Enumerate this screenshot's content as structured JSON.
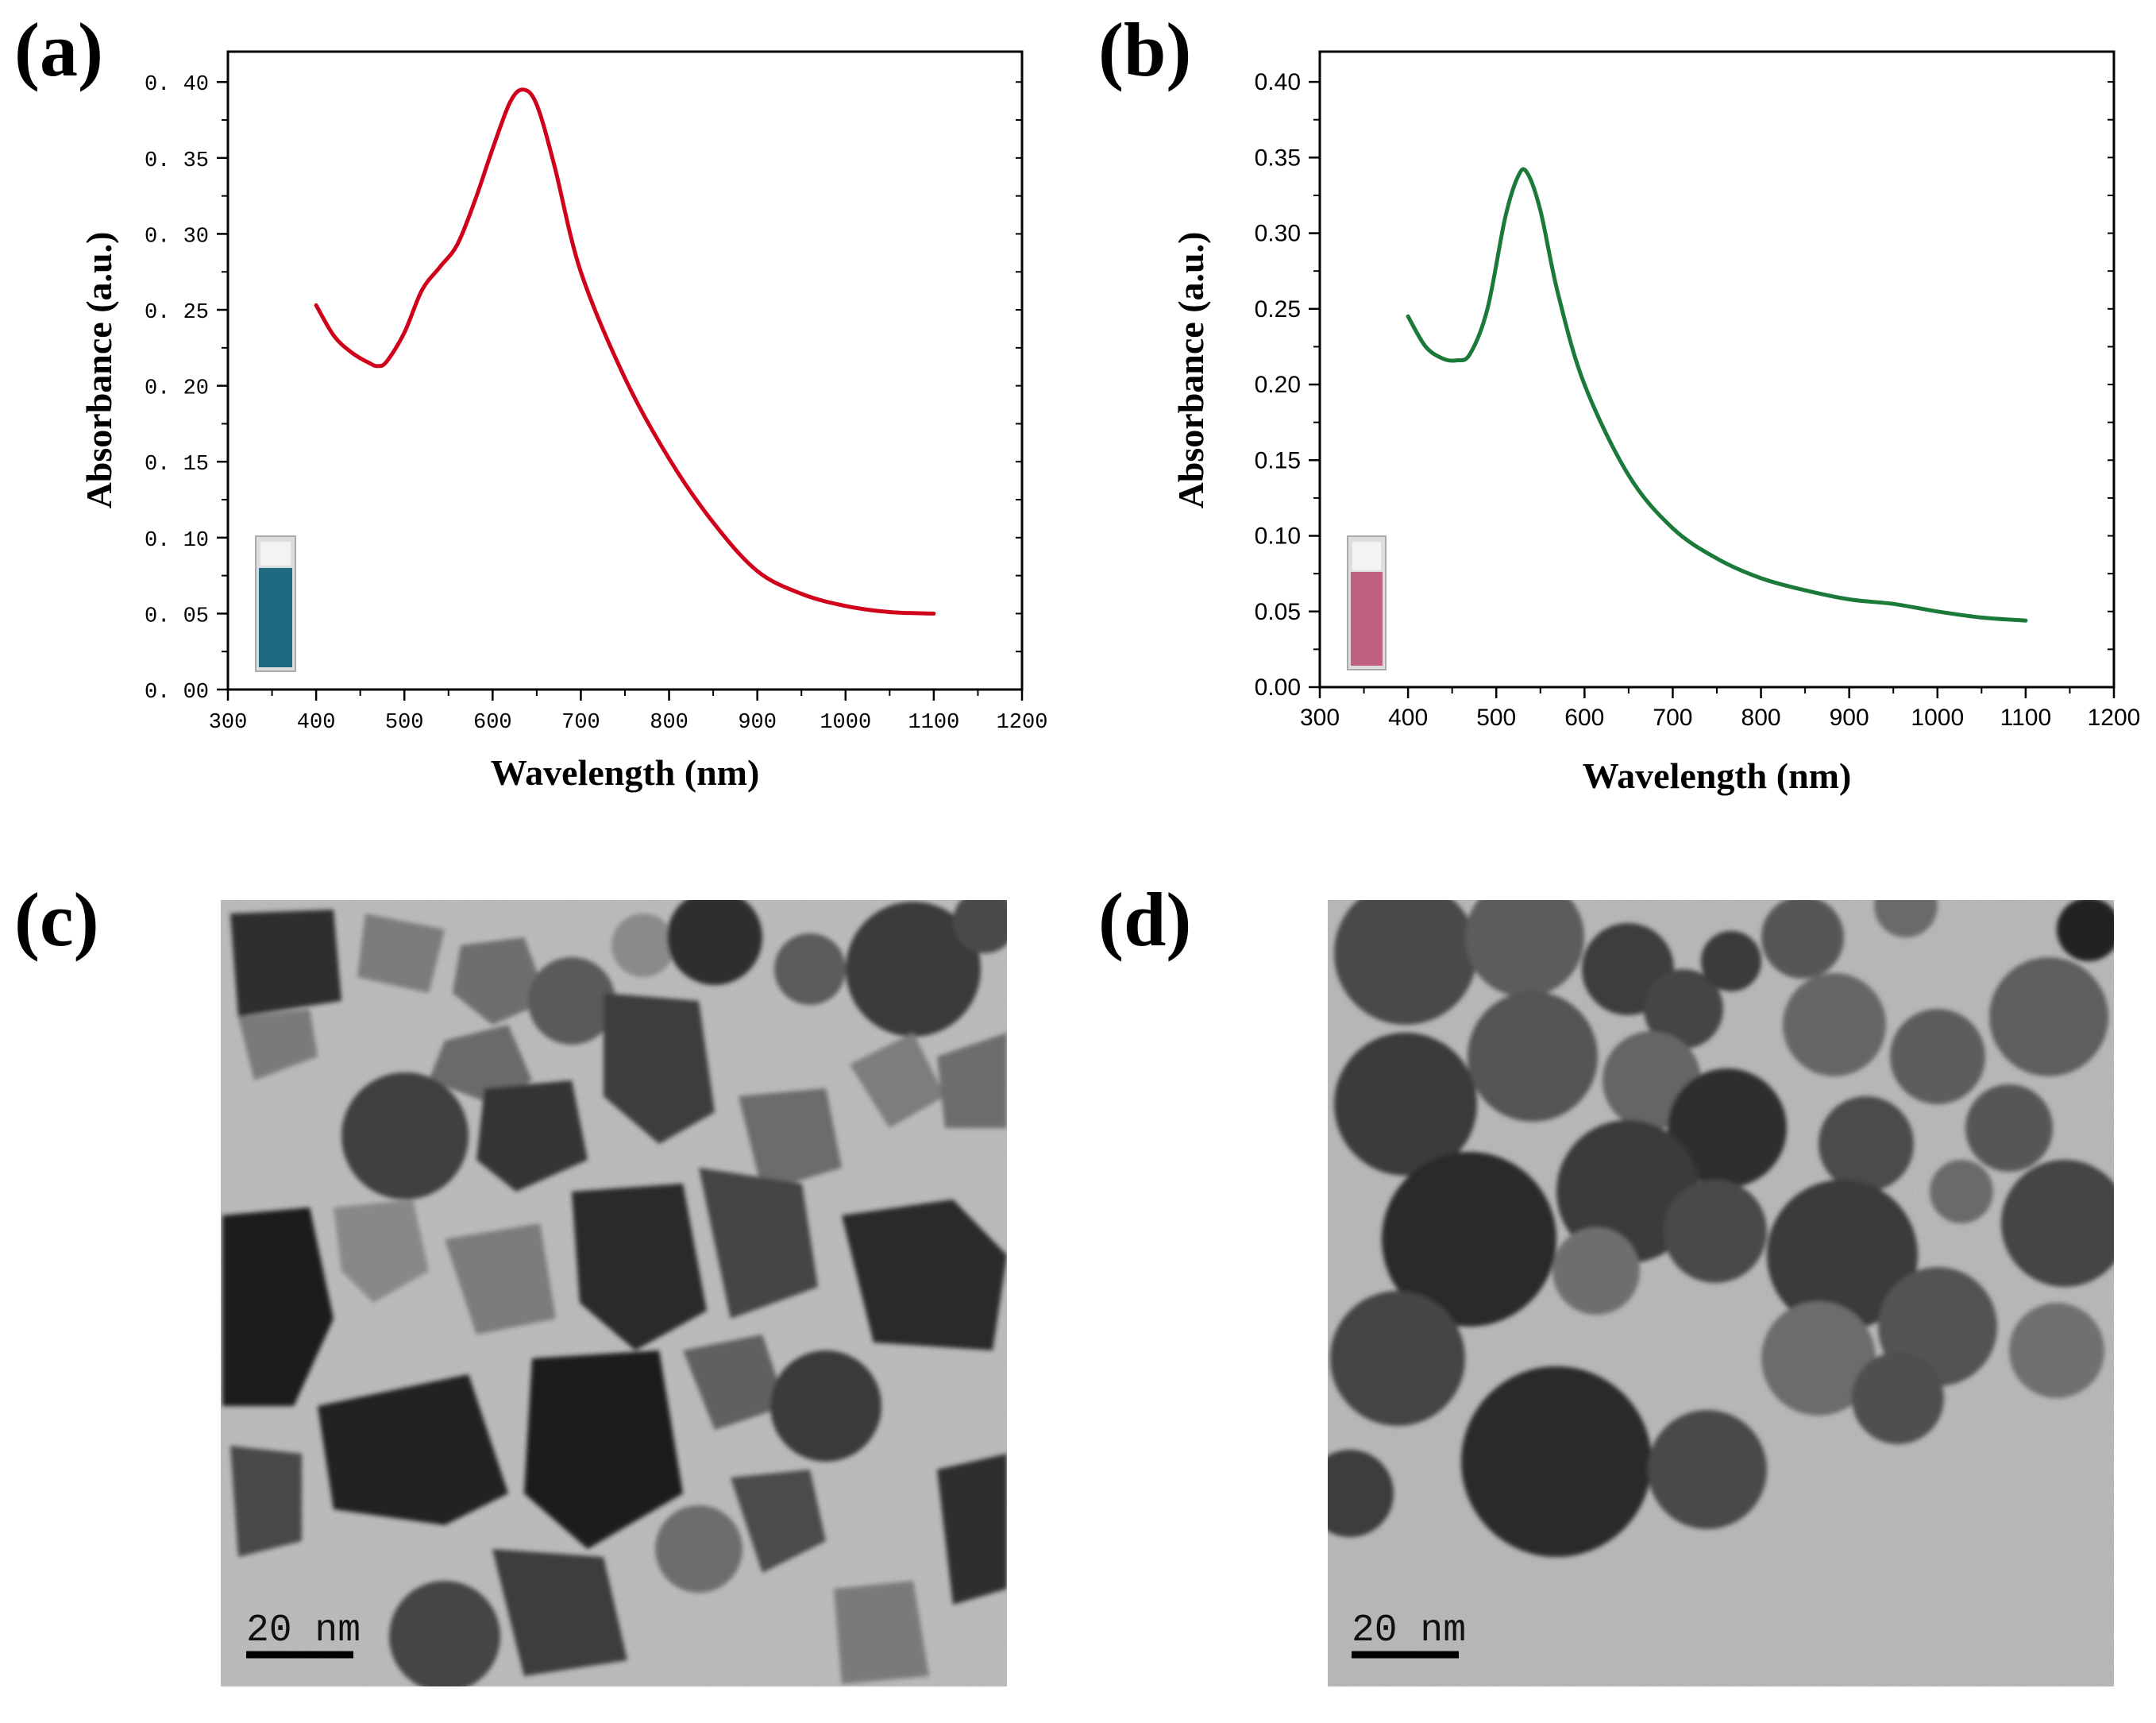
{
  "panels": {
    "a": "(a)",
    "b": "(b)",
    "c": "(c)",
    "d": "(d)"
  },
  "colors": {
    "series_a": "#d0021b",
    "series_b": "#1b7a3a",
    "cuvette_a_liquid": "#1e6a80",
    "cuvette_b_liquid": "#c06080"
  },
  "chart_data": [
    {
      "type": "line",
      "panel": "a",
      "xlabel": "Wavelength (nm)",
      "ylabel": "Absorbance (a.u.)",
      "xlim": [
        300,
        1200
      ],
      "ylim": [
        0.0,
        0.42
      ],
      "xticks": [
        300,
        400,
        500,
        600,
        700,
        800,
        900,
        1000,
        1100,
        1200
      ],
      "xtick_labels": [
        "300",
        "400",
        "500",
        "600",
        "700",
        "800",
        "900",
        "1000",
        "1100",
        "1200"
      ],
      "yticks": [
        0.0,
        0.05,
        0.1,
        0.15,
        0.2,
        0.25,
        0.3,
        0.35,
        0.4
      ],
      "ytick_labels": [
        "0. 00",
        "0. 05",
        "0. 10",
        "0. 15",
        "0. 20",
        "0. 25",
        "0. 30",
        "0. 35",
        "0. 40"
      ],
      "series": [
        {
          "name": "",
          "x": [
            400,
            420,
            440,
            460,
            470,
            480,
            500,
            520,
            540,
            560,
            580,
            600,
            620,
            635,
            650,
            670,
            700,
            750,
            800,
            850,
            900,
            950,
            1000,
            1050,
            1100
          ],
          "y": [
            0.253,
            0.233,
            0.222,
            0.215,
            0.213,
            0.216,
            0.235,
            0.263,
            0.278,
            0.293,
            0.322,
            0.356,
            0.387,
            0.395,
            0.385,
            0.345,
            0.275,
            0.205,
            0.152,
            0.11,
            0.078,
            0.063,
            0.055,
            0.051,
            0.05
          ]
        }
      ]
    },
    {
      "type": "line",
      "panel": "b",
      "xlabel": "Wavelength (nm)",
      "ylabel": "Absorbance (a.u.)",
      "xlim": [
        300,
        1200
      ],
      "ylim": [
        0.0,
        0.42
      ],
      "xticks": [
        300,
        400,
        500,
        600,
        700,
        800,
        900,
        1000,
        1100,
        1200
      ],
      "xtick_labels": [
        "300",
        "400",
        "500",
        "600",
        "700",
        "800",
        "900",
        "1000",
        "1100",
        "1200"
      ],
      "yticks": [
        0.0,
        0.05,
        0.1,
        0.15,
        0.2,
        0.25,
        0.3,
        0.35,
        0.4
      ],
      "ytick_labels": [
        "0.00",
        "0.05",
        "0.10",
        "0.15",
        "0.20",
        "0.25",
        "0.30",
        "0.35",
        "0.40"
      ],
      "series": [
        {
          "name": "",
          "x": [
            400,
            420,
            440,
            455,
            470,
            490,
            510,
            525,
            535,
            550,
            570,
            600,
            650,
            700,
            750,
            800,
            850,
            900,
            950,
            1000,
            1050,
            1100
          ],
          "y": [
            0.245,
            0.225,
            0.217,
            0.216,
            0.22,
            0.25,
            0.31,
            0.338,
            0.34,
            0.315,
            0.26,
            0.2,
            0.14,
            0.105,
            0.085,
            0.072,
            0.064,
            0.058,
            0.055,
            0.05,
            0.046,
            0.044
          ]
        }
      ]
    }
  ],
  "tem": {
    "c_scale_label": "20 nm",
    "d_scale_label": "20 nm"
  }
}
